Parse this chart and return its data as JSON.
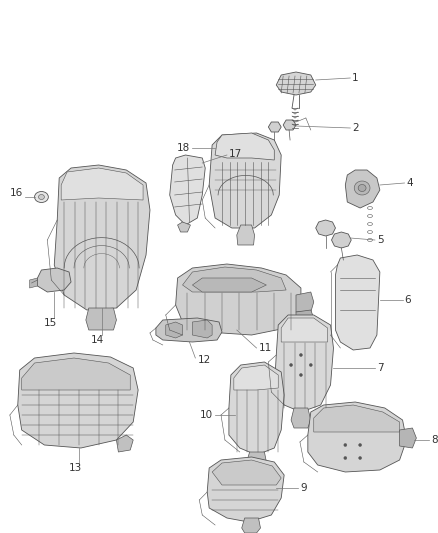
{
  "bg_color": "#ffffff",
  "line_color": "#555555",
  "fill_light": "#e8e8e8",
  "fill_mid": "#d8d8d8",
  "fill_dark": "#c8c8c8",
  "label_color": "#333333",
  "figsize": [
    4.38,
    5.33
  ],
  "dpi": 100,
  "lw": 0.6
}
